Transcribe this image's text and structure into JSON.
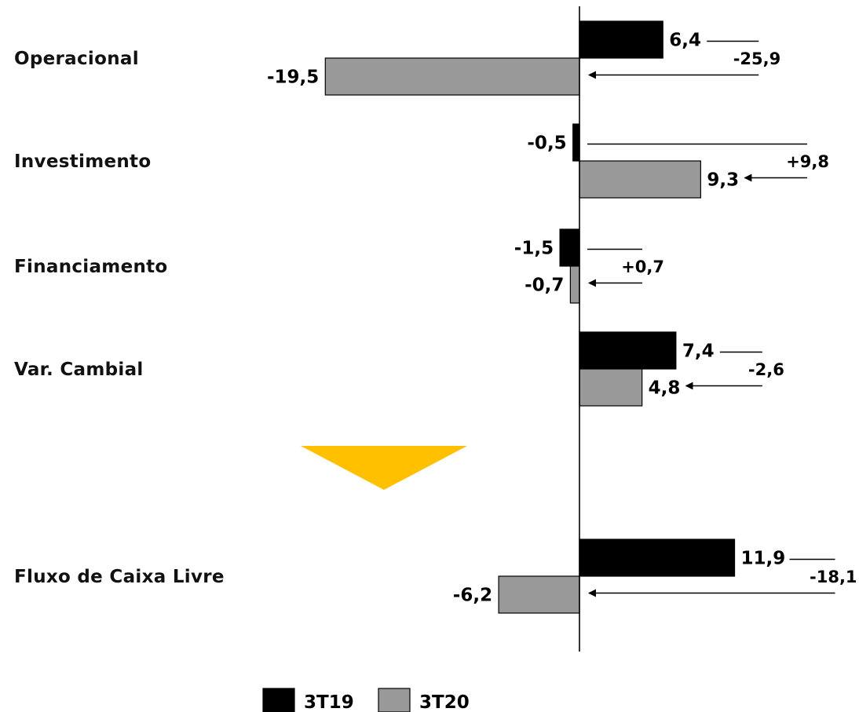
{
  "chart_data": {
    "type": "bar",
    "orientation": "horizontal",
    "categories": [
      "Operacional",
      "Investimento",
      "Financiamento",
      "Var. Cambial",
      "Fluxo de Caixa Livre"
    ],
    "series": [
      {
        "name": "3T19",
        "color": "#000000",
        "values": [
          6.4,
          -0.5,
          -1.5,
          7.4,
          11.9
        ],
        "labels": [
          "6,4",
          "-0,5",
          "-1,5",
          "7,4",
          "11,9"
        ]
      },
      {
        "name": "3T20",
        "color": "#999999",
        "values": [
          -19.5,
          9.3,
          -0.7,
          4.8,
          -6.2
        ],
        "labels": [
          "-19,5",
          "9,3",
          "-0,7",
          "4,8",
          "-6,2"
        ]
      }
    ],
    "changes": [
      {
        "value": -25.9,
        "label": "-25,9"
      },
      {
        "value": 9.8,
        "label": "+9,8"
      },
      {
        "value": 0.7,
        "label": "+0,7"
      },
      {
        "value": -2.6,
        "label": "-2,6"
      },
      {
        "value": -18.1,
        "label": "-18,1"
      }
    ],
    "separator_color": "#FFC000",
    "legend": {
      "position": "bottom-center"
    },
    "grid": false
  }
}
